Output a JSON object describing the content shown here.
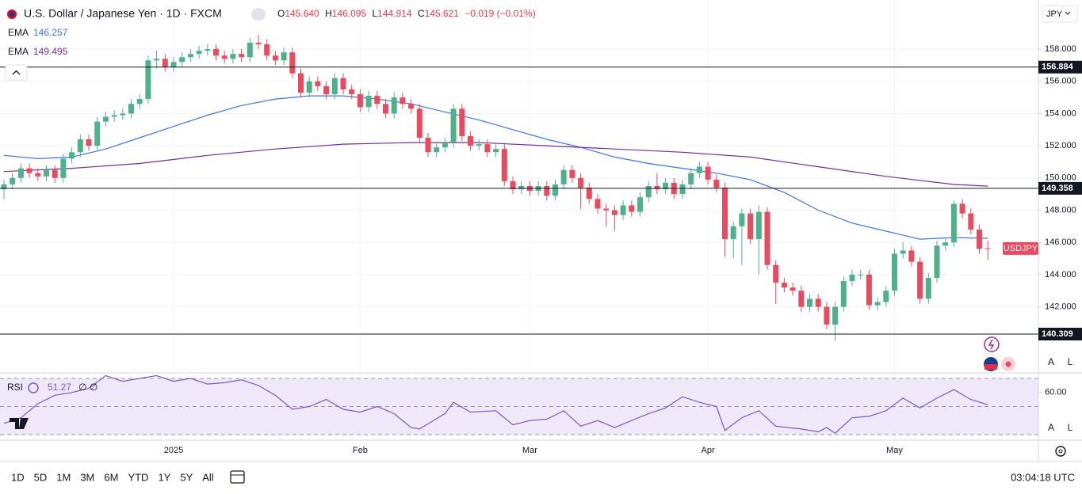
{
  "header": {
    "symbol": "U.S. Dollar / Japanese Yen · 1D · FXCM",
    "ohlc_keys": [
      "O",
      "H",
      "L",
      "C"
    ],
    "open_label": "145.640",
    "change": "−0.019 (−0.01%)",
    "rsi_flags": [
      "∅",
      "∅"
    ]
  },
  "chart_data": [
    {
      "type": "candlestick",
      "currency": "JPY",
      "symbol_tag": "USDJPY",
      "up_color": "#4fb08c",
      "down_color": "#ea4a5d",
      "grid": true,
      "categories": [
        null,
        null,
        null,
        null,
        null,
        null,
        null,
        null,
        null,
        null,
        null,
        null,
        null,
        null,
        null,
        null,
        null,
        null,
        null,
        null,
        "2025",
        null,
        null,
        null,
        null,
        null,
        null,
        null,
        null,
        null,
        null,
        null,
        null,
        null,
        null,
        null,
        null,
        null,
        null,
        null,
        null,
        null,
        "Feb",
        null,
        null,
        null,
        null,
        null,
        null,
        null,
        null,
        null,
        null,
        null,
        null,
        null,
        null,
        null,
        null,
        null,
        null,
        null,
        "Mar",
        null,
        null,
        null,
        null,
        null,
        null,
        null,
        null,
        null,
        null,
        null,
        null,
        null,
        null,
        null,
        null,
        null,
        null,
        null,
        null,
        "Apr",
        null,
        null,
        null,
        null,
        null,
        null,
        null,
        null,
        null,
        null,
        null,
        null,
        null,
        null,
        null,
        null,
        null,
        null,
        null,
        null,
        null,
        "May",
        null,
        null,
        null,
        null,
        null,
        null,
        null,
        null,
        null,
        null,
        null
      ],
      "open": [
        149.3,
        149.6,
        150.0,
        150.6,
        150.3,
        150.1,
        150.5,
        150.0,
        151.2,
        151.6,
        152.4,
        152.0,
        153.5,
        153.8,
        153.9,
        154.0,
        154.6,
        154.9,
        157.3,
        157.4,
        156.9,
        157.2,
        157.5,
        157.7,
        157.9,
        158.0,
        157.6,
        157.4,
        157.7,
        157.5,
        158.4,
        158.3,
        157.6,
        157.3,
        157.8,
        156.5,
        155.3,
        156.0,
        155.7,
        155.2,
        156.2,
        155.5,
        155.2,
        154.4,
        155.1,
        154.6,
        154.0,
        155.0,
        154.6,
        154.3,
        152.5,
        151.6,
        151.9,
        152.2,
        154.3,
        152.6,
        152.0,
        152.1,
        151.6,
        151.8,
        149.8,
        149.3,
        149.5,
        149.2,
        149.5,
        148.9,
        149.6,
        150.5,
        150.0,
        149.4,
        148.7,
        148.1,
        148.0,
        147.7,
        148.3,
        147.9,
        148.8,
        149.5,
        149.3,
        149.7,
        149.0,
        149.6,
        150.3,
        150.7,
        149.9,
        149.4,
        146.2,
        147.0,
        147.8,
        146.2,
        147.9,
        144.6,
        143.5,
        143.2,
        143.0,
        142.0,
        142.5,
        142.0,
        140.9,
        142.0,
        143.6,
        144.0,
        144.0,
        142.1,
        142.3,
        143.0,
        145.3,
        145.5,
        144.8,
        142.5,
        143.8,
        145.8,
        146.0,
        148.4,
        147.8,
        146.8,
        145.64
      ],
      "high": [
        149.9,
        150.3,
        150.9,
        150.9,
        150.6,
        150.8,
        150.8,
        151.5,
        151.9,
        152.7,
        152.7,
        153.8,
        154.1,
        154.2,
        154.3,
        154.9,
        155.2,
        157.6,
        157.9,
        157.7,
        157.5,
        157.8,
        158.0,
        158.2,
        158.3,
        158.3,
        157.9,
        158.0,
        158.0,
        158.7,
        158.9,
        158.6,
        157.9,
        158.1,
        158.1,
        156.8,
        156.3,
        156.3,
        156.0,
        156.5,
        156.5,
        155.8,
        155.5,
        155.4,
        155.4,
        154.9,
        155.3,
        155.3,
        154.9,
        154.6,
        152.8,
        152.2,
        152.5,
        154.6,
        154.6,
        152.9,
        152.4,
        152.4,
        152.1,
        152.1,
        150.1,
        149.8,
        149.8,
        149.8,
        149.8,
        149.9,
        150.8,
        150.8,
        150.3,
        149.7,
        149.0,
        148.4,
        148.3,
        148.6,
        148.6,
        149.1,
        149.8,
        150.3,
        150.0,
        150.0,
        149.9,
        150.6,
        151.0,
        151.0,
        150.2,
        149.7,
        147.3,
        148.1,
        148.1,
        148.3,
        148.2,
        144.9,
        143.8,
        143.5,
        143.3,
        142.8,
        142.8,
        142.3,
        142.3,
        143.9,
        144.3,
        144.3,
        144.3,
        142.6,
        143.3,
        145.6,
        146.0,
        145.8,
        145.1,
        144.1,
        146.1,
        146.3,
        148.6,
        148.7,
        148.1,
        147.1,
        146.095
      ],
      "low": [
        148.7,
        149.3,
        149.7,
        150.0,
        149.8,
        149.8,
        149.7,
        149.7,
        150.9,
        151.3,
        151.7,
        151.7,
        153.2,
        153.5,
        153.6,
        153.7,
        154.3,
        154.6,
        156.8,
        156.6,
        156.6,
        156.9,
        157.2,
        157.4,
        157.6,
        157.3,
        157.1,
        157.1,
        157.2,
        157.2,
        158.0,
        157.3,
        157.0,
        157.0,
        156.2,
        155.0,
        155.0,
        155.4,
        154.9,
        154.9,
        155.2,
        154.9,
        154.1,
        154.1,
        154.3,
        153.7,
        153.7,
        154.3,
        154.0,
        152.2,
        151.3,
        151.3,
        151.6,
        151.9,
        152.3,
        151.7,
        151.7,
        151.3,
        151.3,
        149.5,
        149.0,
        149.0,
        148.9,
        148.9,
        148.6,
        148.6,
        149.3,
        149.7,
        148.1,
        148.4,
        147.8,
        147.0,
        146.7,
        147.4,
        147.6,
        147.6,
        148.5,
        149.0,
        149.0,
        148.7,
        148.7,
        149.3,
        150.0,
        149.6,
        149.1,
        145.1,
        145.0,
        144.6,
        145.9,
        144.0,
        144.3,
        142.2,
        142.9,
        142.7,
        141.7,
        141.7,
        141.7,
        140.6,
        139.9,
        141.7,
        143.3,
        143.7,
        141.8,
        141.8,
        142.0,
        142.7,
        145.0,
        144.5,
        142.2,
        142.2,
        143.5,
        145.5,
        145.7,
        147.5,
        146.5,
        145.3,
        144.914
      ],
      "close": [
        149.6,
        150.0,
        150.6,
        150.3,
        150.1,
        150.5,
        150.0,
        151.2,
        151.6,
        152.4,
        152.0,
        153.5,
        153.8,
        153.9,
        154.0,
        154.6,
        154.9,
        157.3,
        157.4,
        156.9,
        157.2,
        157.5,
        157.7,
        157.9,
        158.0,
        157.6,
        157.4,
        157.7,
        157.5,
        158.4,
        158.3,
        157.6,
        157.3,
        157.8,
        156.5,
        155.3,
        156.0,
        155.7,
        155.2,
        156.2,
        155.5,
        155.2,
        154.4,
        155.1,
        154.6,
        154.0,
        155.0,
        154.6,
        154.3,
        152.5,
        151.6,
        151.9,
        152.2,
        154.3,
        152.6,
        152.0,
        152.1,
        151.6,
        151.8,
        149.8,
        149.3,
        149.5,
        149.2,
        149.5,
        148.9,
        149.6,
        150.5,
        150.0,
        149.4,
        148.7,
        148.1,
        148.0,
        147.7,
        148.3,
        147.9,
        148.8,
        149.5,
        149.3,
        149.7,
        149.0,
        149.6,
        150.3,
        150.7,
        149.9,
        149.4,
        146.2,
        147.0,
        147.8,
        146.2,
        147.9,
        144.6,
        143.5,
        143.2,
        143.0,
        142.0,
        142.5,
        142.0,
        140.9,
        142.0,
        143.6,
        144.0,
        144.0,
        142.1,
        142.3,
        143.0,
        145.3,
        145.5,
        144.8,
        142.5,
        143.8,
        145.8,
        146.0,
        148.4,
        147.8,
        146.8,
        145.6,
        145.621
      ],
      "series": [
        {
          "name": "EMA",
          "color": "#3a76e8",
          "x": [
            0,
            4,
            8,
            12,
            16,
            20,
            24,
            28,
            32,
            36,
            40,
            44,
            48,
            52,
            56,
            60,
            64,
            68,
            72,
            76,
            80,
            84,
            88,
            92,
            96,
            100,
            104,
            108,
            112,
            116
          ],
          "values": [
            151.4,
            151.2,
            151.3,
            151.8,
            152.5,
            153.2,
            153.9,
            154.5,
            154.9,
            155.1,
            155.1,
            154.9,
            154.6,
            154.1,
            153.6,
            153.0,
            152.4,
            151.9,
            151.3,
            150.9,
            150.6,
            150.3,
            149.9,
            149.1,
            148.0,
            147.2,
            146.7,
            146.2,
            146.3,
            146.257
          ]
        },
        {
          "name": "EMA",
          "color": "#7b2a9c",
          "x": [
            0,
            8,
            16,
            24,
            32,
            40,
            48,
            56,
            64,
            72,
            80,
            88,
            96,
            104,
            112,
            116
          ],
          "values": [
            150.4,
            150.6,
            150.9,
            151.4,
            151.8,
            152.1,
            152.2,
            152.2,
            152.0,
            151.8,
            151.6,
            151.3,
            150.7,
            150.1,
            149.6,
            149.495
          ]
        }
      ],
      "levels": [
        156.884,
        149.358,
        140.309
      ],
      "ylim": [
        137.95,
        161.05
      ],
      "yticks": [
        {
          "value": 142,
          "label": "142.000"
        },
        {
          "value": 144,
          "label": "144.000"
        },
        {
          "value": 146,
          "label": "146.000"
        },
        {
          "value": 148,
          "label": "148.000"
        },
        {
          "value": 150,
          "label": "150.000"
        },
        {
          "value": 152,
          "label": "152.000"
        },
        {
          "value": 154,
          "label": "154.000"
        },
        {
          "value": 156,
          "label": "156.000"
        },
        {
          "value": 158,
          "label": "158.000"
        }
      ]
    },
    {
      "type": "line",
      "title": "RSI",
      "color": "#7e57c2",
      "band_color": "#efe8f8",
      "x": [
        0,
        2,
        4,
        6,
        8,
        10,
        12,
        14,
        16,
        18,
        20,
        22,
        24,
        26,
        28,
        30,
        32,
        34,
        36,
        38,
        40,
        42,
        44,
        46,
        48,
        49,
        52,
        53,
        55,
        58,
        60,
        62,
        64,
        66,
        68,
        70,
        72,
        74,
        76,
        78,
        80,
        82,
        84,
        85,
        87,
        89,
        91,
        94,
        96,
        97,
        98,
        100,
        102,
        104,
        106,
        108,
        110,
        112,
        114,
        116
      ],
      "values": [
        38,
        42,
        52,
        58,
        60,
        63,
        72,
        68,
        70,
        72,
        68,
        70,
        66,
        67,
        69,
        65,
        58,
        48,
        50,
        55,
        48,
        46,
        50,
        45,
        35,
        34,
        45,
        53,
        46,
        47,
        37,
        40,
        41,
        47,
        36,
        40,
        35,
        40,
        45,
        49,
        57,
        53,
        50,
        33,
        42,
        47,
        36,
        34,
        32,
        35,
        31,
        42,
        43,
        47,
        56,
        49,
        56,
        62,
        55,
        51.27
      ],
      "levels": [
        70,
        50,
        30
      ],
      "ylim": [
        26.6,
        73.4
      ],
      "yticks": [
        {
          "value": 60,
          "label": "60.00"
        }
      ]
    }
  ],
  "toolbar": {
    "ranges": [
      "1D",
      "5D",
      "1M",
      "3M",
      "6M",
      "YTD",
      "1Y",
      "5Y",
      "All"
    ],
    "clock": "03:04:18 UTC"
  },
  "scale_buttons": [
    "A",
    "L"
  ]
}
